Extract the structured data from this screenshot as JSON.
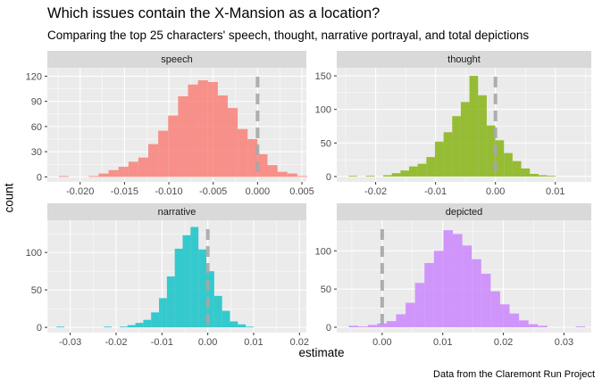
{
  "title": "Which issues contain the X-Mansion as a location?",
  "subtitle": "Comparing the top 25 characters' speech, thought, narrative portrayal, and total depictions",
  "caption": "Data from the Claremont Run Project",
  "colors": {
    "speech": "#F8766D",
    "thought": "#7CAE00",
    "narrative": "#00BFC4",
    "depicted": "#C77CFF",
    "reference_line": "#A6A6A6",
    "panel_bg": "#EBEBEB",
    "strip_bg": "#D9D9D9",
    "grid": "#FFFFFF"
  },
  "chart_data": {
    "type": "histogram",
    "xlabel": "estimate",
    "ylabel": "count",
    "reference_x": 0,
    "facets": [
      {
        "name": "speech",
        "bin_width": 0.00112,
        "xlim": [
          -0.0237,
          0.0055
        ],
        "ylim": [
          -6,
          130
        ],
        "x_ticks": [
          -0.02,
          -0.015,
          -0.01,
          -0.005,
          0.0,
          0.005
        ],
        "x_tick_labels": [
          "-0.020",
          "-0.015",
          "-0.010",
          "-0.005",
          "0.000",
          "0.005"
        ],
        "y_ticks": [
          0,
          30,
          60,
          90,
          120
        ],
        "bin_start": -0.0224,
        "counts": [
          1,
          0,
          0,
          1,
          4,
          8,
          12,
          18,
          23,
          39,
          55,
          73,
          96,
          110,
          115,
          113,
          97,
          82,
          57,
          45,
          27,
          14,
          6,
          4,
          1
        ]
      },
      {
        "name": "thought",
        "bin_width": 0.00144,
        "xlim": [
          -0.0265,
          0.016
        ],
        "ylim": [
          -8,
          162
        ],
        "x_ticks": [
          -0.02,
          -0.01,
          0.0,
          0.01
        ],
        "x_tick_labels": [
          "-0.02",
          "-0.01",
          "0.00",
          "0.01"
        ],
        "y_ticks": [
          0,
          50,
          100,
          150
        ],
        "bin_start": -0.0245,
        "counts": [
          1,
          0,
          1,
          0,
          2,
          5,
          9,
          15,
          19,
          29,
          52,
          66,
          90,
          111,
          150,
          121,
          76,
          54,
          35,
          23,
          12,
          4,
          2,
          1
        ]
      },
      {
        "name": "narrative",
        "bin_width": 0.00172,
        "xlim": [
          -0.035,
          0.0215
        ],
        "ylim": [
          -7,
          143
        ],
        "x_ticks": [
          -0.03,
          -0.02,
          -0.01,
          0.0,
          0.01,
          0.02
        ],
        "x_tick_labels": [
          "-0.03",
          "-0.02",
          "-0.01",
          "0.00",
          "0.01",
          "0.02"
        ],
        "y_ticks": [
          0,
          50,
          100
        ],
        "bin_start": -0.033,
        "counts": [
          1,
          0,
          0,
          0,
          0,
          0,
          1,
          0,
          1,
          3,
          6,
          10,
          20,
          39,
          68,
          105,
          123,
          134,
          104,
          75,
          42,
          22,
          8,
          4,
          1
        ]
      },
      {
        "name": "depicted",
        "bin_width": 0.00156,
        "xlim": [
          -0.0075,
          0.0345
        ],
        "ylim": [
          -7,
          140
        ],
        "x_ticks": [
          0.0,
          0.01,
          0.02,
          0.03
        ],
        "x_tick_labels": [
          "0.00",
          "0.01",
          "0.02",
          "0.03"
        ],
        "y_ticks": [
          0,
          50,
          100
        ],
        "bin_start": -0.0055,
        "counts": [
          2,
          1,
          3,
          5,
          8,
          17,
          32,
          58,
          84,
          100,
          127,
          122,
          107,
          89,
          70,
          47,
          30,
          18,
          9,
          4,
          2,
          0,
          0,
          0,
          1
        ]
      }
    ]
  }
}
